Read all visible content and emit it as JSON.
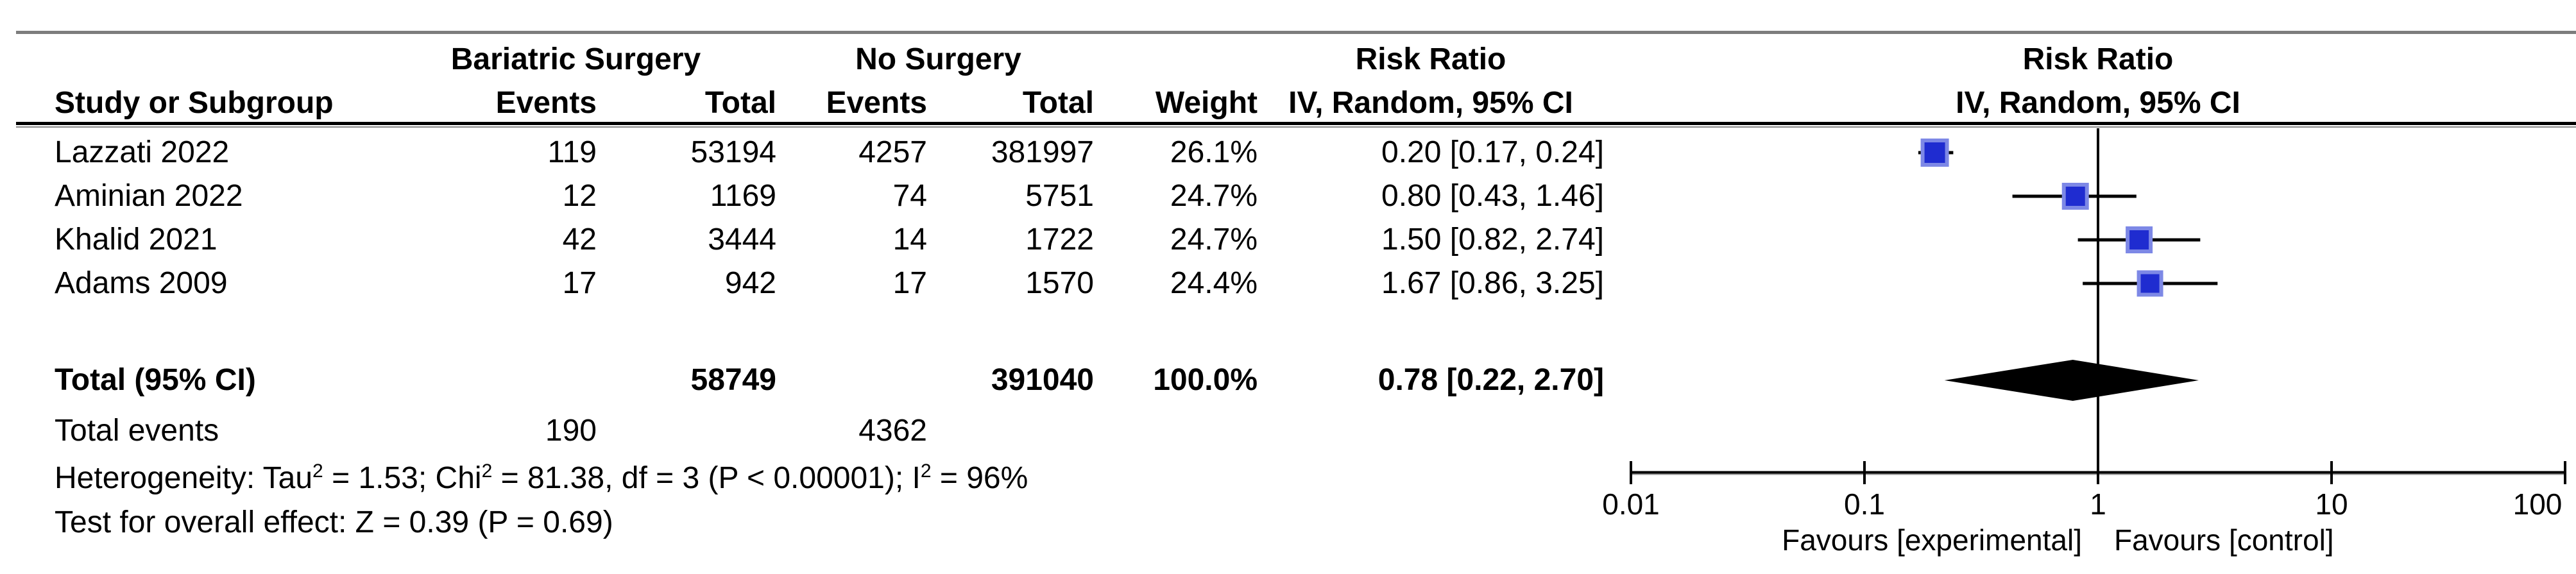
{
  "figure": {
    "title_implicit": "Forest plot – Risk Ratio, Bariatric Surgery vs No Surgery"
  },
  "header": {
    "group_experimental": "Bariatric Surgery",
    "group_control": "No Surgery",
    "effect_title": "Risk Ratio",
    "effect_sub": "IV, Random, 95% CI",
    "plot_title": "Risk Ratio",
    "plot_sub": "IV, Random, 95% CI",
    "study_col": "Study or Subgroup",
    "events_exp_col": "Events",
    "total_exp_col": "Total",
    "events_ctl_col": "Events",
    "total_ctl_col": "Total",
    "weight_col": "Weight"
  },
  "rows": [
    {
      "study": "Lazzati 2022",
      "events1": "119",
      "total1": "53194",
      "events2": "4257",
      "total2": "381997",
      "weight": "26.1%",
      "ci": "0.20 [0.17, 0.24]"
    },
    {
      "study": "Aminian 2022",
      "events1": "12",
      "total1": "1169",
      "events2": "74",
      "total2": "5751",
      "weight": "24.7%",
      "ci": "0.80 [0.43, 1.46]"
    },
    {
      "study": "Khalid 2021",
      "events1": "42",
      "total1": "3444",
      "events2": "14",
      "total2": "1722",
      "weight": "24.7%",
      "ci": "1.50 [0.82, 2.74]"
    },
    {
      "study": "Adams 2009",
      "events1": "17",
      "total1": "942",
      "events2": "17",
      "total2": "1570",
      "weight": "24.4%",
      "ci": "1.67 [0.86, 3.25]"
    }
  ],
  "total_row": {
    "label": "Total (95% CI)",
    "total1": "58749",
    "total2": "391040",
    "weight": "100.0%",
    "ci": "0.78 [0.22, 2.70]"
  },
  "total_events": {
    "label": "Total events",
    "events1": "190",
    "events2": "4362"
  },
  "footnotes": {
    "het": {
      "t1": "Heterogeneity: Tau",
      "s1": "2",
      "t2": " = 1.53; Chi",
      "s2": "2",
      "t3": " = 81.38, df = 3 (P < 0.00001); I",
      "s3": "2",
      "t4": " = 96%"
    },
    "overall": "Test for overall effect: Z = 0.39 (P = 0.69)"
  },
  "chart_data": {
    "type": "forest",
    "x_scale": "log10",
    "xlim": [
      0.01,
      100
    ],
    "axis_ticks": [
      0.01,
      0.1,
      1,
      10,
      100
    ],
    "axis_tick_labels": [
      "0.01",
      "0.1",
      "1",
      "10",
      "100"
    ],
    "null_line": 1,
    "favours_left": "Favours [experimental]",
    "favours_right": "Favours [control]",
    "studies": [
      {
        "name": "Lazzati 2022",
        "rr": 0.2,
        "ci_low": 0.17,
        "ci_high": 0.24,
        "weight_pct": 26.1
      },
      {
        "name": "Aminian 2022",
        "rr": 0.8,
        "ci_low": 0.43,
        "ci_high": 1.46,
        "weight_pct": 24.7
      },
      {
        "name": "Khalid 2021",
        "rr": 1.5,
        "ci_low": 0.82,
        "ci_high": 2.74,
        "weight_pct": 24.7
      },
      {
        "name": "Adams 2009",
        "rr": 1.67,
        "ci_low": 0.86,
        "ci_high": 3.25,
        "weight_pct": 24.4
      }
    ],
    "total": {
      "rr": 0.78,
      "ci_low": 0.22,
      "ci_high": 2.7,
      "weight_pct": 100.0
    },
    "colors": {
      "marker_fill": "#1f2cd0",
      "marker_halo": "#7d88e6",
      "diamond": "#000000",
      "line": "#000000"
    }
  }
}
